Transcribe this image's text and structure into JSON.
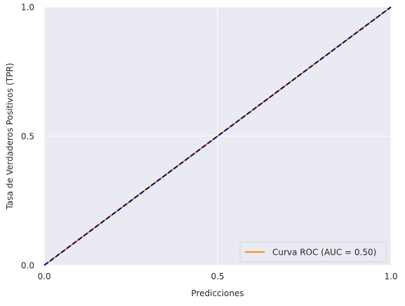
{
  "chart_data": {
    "type": "line",
    "title": "",
    "xlabel": "Predicciones",
    "ylabel": "Tasa de Verdaderos Positivos (TPR)",
    "xlim": [
      0.0,
      1.0
    ],
    "ylim": [
      0.0,
      1.0
    ],
    "xticks": [
      0.0,
      0.5,
      1.0
    ],
    "yticks": [
      0.0,
      0.5,
      1.0
    ],
    "xtick_labels": [
      "0.0",
      "0.5",
      "1.0"
    ],
    "ytick_labels": [
      "0.0",
      "0.5",
      "1.0"
    ],
    "grid": true,
    "legend_position": "lower-right",
    "series": [
      {
        "name": "Curva ROC (AUC = 0.50)",
        "x": [
          0.0,
          1.0
        ],
        "y": [
          0.0,
          1.0
        ],
        "color": "#ff8c00",
        "style": "solid",
        "in_legend": true
      },
      {
        "name": "",
        "x": [
          0.0,
          1.0
        ],
        "y": [
          0.0,
          1.0
        ],
        "color": "#000080",
        "style": "dashed",
        "in_legend": false
      }
    ],
    "colors": {
      "plot_background": "#eaeaf2",
      "grid": "#ffffff"
    }
  }
}
